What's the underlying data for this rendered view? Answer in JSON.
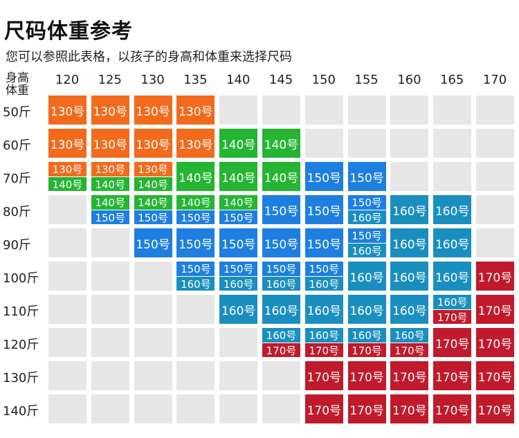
{
  "title": "尺码体重参考",
  "subtitle": "您可以参照此表格，以孩子的身高和体重来选择尺码",
  "corner": {
    "line1": "身高",
    "line2": "体重"
  },
  "heights": [
    "120",
    "125",
    "130",
    "135",
    "140",
    "145",
    "150",
    "155",
    "160",
    "165",
    "170"
  ],
  "weights": [
    "50斤",
    "60斤",
    "70斤",
    "80斤",
    "90斤",
    "100斤",
    "110斤",
    "120斤",
    "130斤",
    "140斤"
  ],
  "colors": {
    "130号": "#f26b1d",
    "140号": "#25b532",
    "150号": "#1e7fe0",
    "160号": "#1a8fbf",
    "170号": "#c01a2c",
    "empty": "#e7e7e7"
  },
  "grid": [
    [
      [
        "130号"
      ],
      [
        "130号"
      ],
      [
        "130号"
      ],
      [
        "130号"
      ],
      [],
      [],
      [],
      [],
      [],
      [],
      []
    ],
    [
      [
        "130号"
      ],
      [
        "130号"
      ],
      [
        "130号"
      ],
      [
        "130号"
      ],
      [
        "140号"
      ],
      [
        "140号"
      ],
      [],
      [],
      [],
      [],
      []
    ],
    [
      [
        "130号",
        "140号"
      ],
      [
        "130号",
        "140号"
      ],
      [
        "130号",
        "140号"
      ],
      [
        "140号"
      ],
      [
        "140号"
      ],
      [
        "140号"
      ],
      [
        "150号"
      ],
      [
        "150号"
      ],
      [],
      [],
      []
    ],
    [
      [],
      [
        "140号",
        "150号"
      ],
      [
        "140号",
        "150号"
      ],
      [
        "140号",
        "150号"
      ],
      [
        "140号",
        "150号"
      ],
      [
        "150号"
      ],
      [
        "150号"
      ],
      [
        "150号",
        "160号"
      ],
      [
        "160号"
      ],
      [
        "160号"
      ],
      []
    ],
    [
      [],
      [],
      [
        "150号"
      ],
      [
        "150号"
      ],
      [
        "150号"
      ],
      [
        "150号"
      ],
      [
        "150号"
      ],
      [
        "150号",
        "160号"
      ],
      [
        "160号"
      ],
      [
        "160号"
      ],
      []
    ],
    [
      [],
      [],
      [],
      [
        "150号",
        "160号"
      ],
      [
        "150号",
        "160号"
      ],
      [
        "150号",
        "160号"
      ],
      [
        "150号",
        "160号"
      ],
      [
        "160号"
      ],
      [
        "160号"
      ],
      [
        "160号"
      ],
      [
        "170号"
      ]
    ],
    [
      [],
      [],
      [],
      [],
      [
        "160号"
      ],
      [
        "160号"
      ],
      [
        "160号"
      ],
      [
        "160号"
      ],
      [
        "160号"
      ],
      [
        "160号",
        "170号"
      ],
      [
        "170号"
      ]
    ],
    [
      [],
      [],
      [],
      [],
      [],
      [
        "160号",
        "170号"
      ],
      [
        "160号",
        "170号"
      ],
      [
        "160号",
        "170号"
      ],
      [
        "160号",
        "170号"
      ],
      [
        "170号"
      ],
      [
        "170号"
      ]
    ],
    [
      [],
      [],
      [],
      [],
      [],
      [],
      [
        "170号"
      ],
      [
        "170号"
      ],
      [
        "170号"
      ],
      [
        "170号"
      ],
      [
        "170号"
      ]
    ],
    [
      [],
      [],
      [],
      [],
      [],
      [],
      [
        "170号"
      ],
      [
        "170号"
      ],
      [
        "170号"
      ],
      [
        "170号"
      ],
      [
        "170号"
      ]
    ]
  ]
}
